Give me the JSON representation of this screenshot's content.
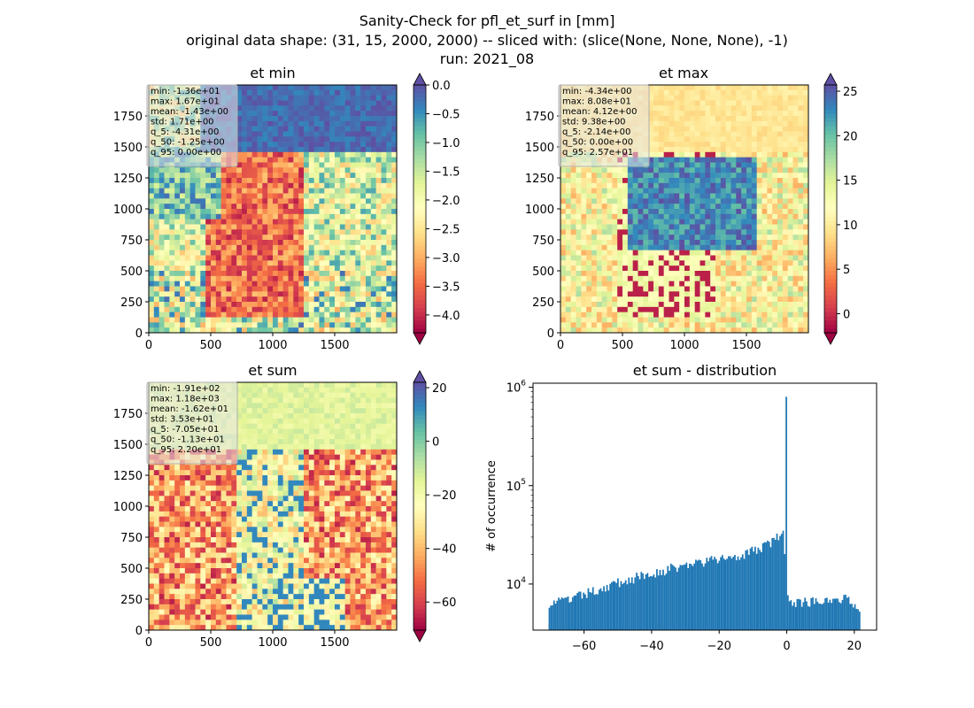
{
  "figure": {
    "title_lines": [
      "Sanity-Check for pfl_et_surf in [mm]",
      "original data shape: (31, 15, 2000, 2000) -- sliced with: (slice(None, None, None), -1)",
      "run: 2021_08"
    ]
  },
  "chart_data": [
    {
      "type": "heatmap",
      "title": "et min",
      "x_ticks": [
        0,
        500,
        1000,
        1500
      ],
      "y_ticks": [
        0,
        250,
        500,
        750,
        1000,
        1250,
        1500,
        1750
      ],
      "xlim": [
        0,
        2000
      ],
      "ylim": [
        0,
        2000
      ],
      "colormap": "Spectral",
      "colorbar": {
        "range": [
          -4.31,
          0.0
        ],
        "ticks": [
          "0.0",
          "−0.5",
          "−1.0",
          "−1.5",
          "−2.0",
          "−2.5",
          "−3.0",
          "−3.5",
          "−4.0"
        ],
        "tick_values": [
          0.0,
          -0.5,
          -1.0,
          -1.5,
          -2.0,
          -2.5,
          -3.0,
          -3.5,
          -4.0
        ],
        "extend": "both"
      },
      "stats": [
        "min: -1.36e+01",
        "max: 1.67e+01",
        "mean: -1.43e+00",
        "std: 1.71e+00",
        "q_5: -4.31e+00",
        "q_50: -1.25e+00",
        "q_95: 0.00e+00"
      ]
    },
    {
      "type": "heatmap",
      "title": "et max",
      "x_ticks": [
        0,
        500,
        1000,
        1500
      ],
      "y_ticks": [
        0,
        250,
        500,
        750,
        1000,
        1250,
        1500,
        1750
      ],
      "xlim": [
        0,
        2000
      ],
      "ylim": [
        0,
        2000
      ],
      "colormap": "Spectral",
      "colorbar": {
        "range": [
          -2.14,
          25.7
        ],
        "ticks": [
          "0",
          "5",
          "10",
          "15",
          "20",
          "25"
        ],
        "tick_values": [
          0,
          5,
          10,
          15,
          20,
          25
        ],
        "extend": "both"
      },
      "stats": [
        "min: -4.34e+00",
        "max: 8.08e+01",
        "mean: 4.12e+00",
        "std: 9.38e+00",
        "q_5: -2.14e+00",
        "q_50: 0.00e+00",
        "q_95: 2.57e+01"
      ]
    },
    {
      "type": "heatmap",
      "title": "et sum",
      "x_ticks": [
        0,
        500,
        1000,
        1500
      ],
      "y_ticks": [
        0,
        250,
        500,
        750,
        1000,
        1250,
        1500,
        1750
      ],
      "xlim": [
        0,
        2000
      ],
      "ylim": [
        0,
        2000
      ],
      "colormap": "Spectral",
      "colorbar": {
        "range": [
          -70.5,
          22.0
        ],
        "ticks": [
          "20",
          "0",
          "−20",
          "−40",
          "−60"
        ],
        "tick_values": [
          20,
          0,
          -20,
          -40,
          -60
        ],
        "extend": "both"
      },
      "stats": [
        "min: -1.91e+02",
        "max: 1.18e+03",
        "mean: -1.62e+01",
        "std: 3.53e+01",
        "q_5: -7.05e+01",
        "q_50: -1.13e+01",
        "q_95: 2.20e+01"
      ]
    },
    {
      "type": "bar",
      "title": "et sum - distribution",
      "ylabel": "# of occurrence",
      "yscale": "log",
      "xlim": [
        -75.1,
        26.6
      ],
      "ylim": [
        3400,
        1100000
      ],
      "x_ticks": [
        "−60",
        "−40",
        "−20",
        "0",
        "20"
      ],
      "x_tick_values": [
        -60,
        -40,
        -20,
        0,
        20
      ],
      "y_ticks": [
        "10^4",
        "10^5",
        "10^6"
      ],
      "y_tick_values": [
        10000,
        100000,
        1000000
      ],
      "color": "#1f77b4",
      "histogram_control_points": [
        [
          -70.5,
          6500
        ],
        [
          -65,
          6800
        ],
        [
          -60,
          7800
        ],
        [
          -55,
          9000
        ],
        [
          -50,
          10300
        ],
        [
          -45,
          11500
        ],
        [
          -40,
          12800
        ],
        [
          -35,
          14200
        ],
        [
          -30,
          15500
        ],
        [
          -25,
          16700
        ],
        [
          -20,
          17800
        ],
        [
          -15,
          19500
        ],
        [
          -10,
          21500
        ],
        [
          -5,
          26000
        ],
        [
          -2,
          31000
        ],
        [
          -1,
          32000
        ],
        [
          -0.6,
          15000
        ],
        [
          -0.3,
          800000
        ],
        [
          0.1,
          9200
        ],
        [
          0.5,
          7000
        ],
        [
          3,
          6500
        ],
        [
          8,
          6700
        ],
        [
          13,
          7200
        ],
        [
          18,
          7000
        ],
        [
          21.8,
          5800
        ]
      ]
    }
  ]
}
